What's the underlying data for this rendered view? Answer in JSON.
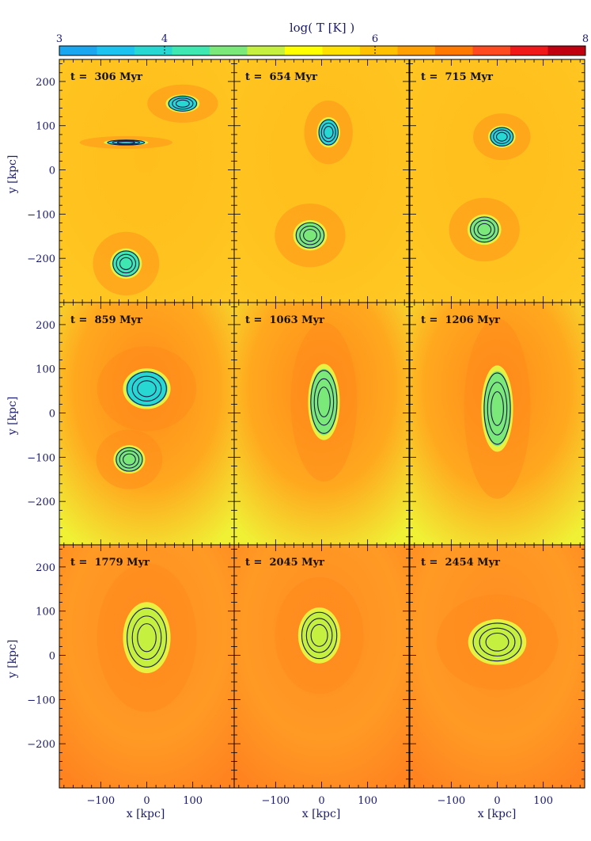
{
  "colorbar": {
    "title": "log( T [K] )",
    "ticks": [
      3,
      4,
      6,
      8
    ],
    "range": [
      3,
      8
    ],
    "colors": [
      "#1aa7f0",
      "#1cc2f0",
      "#27d8d2",
      "#3ee8b0",
      "#7be87a",
      "#c6f040",
      "#ffff00",
      "#ffe000",
      "#ffc000",
      "#ffa000",
      "#ff7800",
      "#ff4a20",
      "#f01818",
      "#c00010"
    ]
  },
  "chart_data": {
    "type": "heatmap",
    "title": "log( T [K] )",
    "xlabel": "x [kpc]",
    "ylabel": "y [kpc]",
    "xlim": [
      -190,
      190
    ],
    "ylim": [
      -300,
      250
    ],
    "xticks": [
      -100,
      0,
      100
    ],
    "yticks": [
      200,
      100,
      0,
      -100,
      -200
    ],
    "panels": [
      {
        "label": "t =  306 Myr",
        "time_myr": 306,
        "clouds": [
          {
            "x": 78,
            "y": 150,
            "rx": 32,
            "ry": 18,
            "t": 3.9
          },
          {
            "x": -45,
            "y": 62,
            "rx": 42,
            "ry": 6,
            "t": 4.0
          },
          {
            "x": -45,
            "y": -212,
            "rx": 30,
            "ry": 30,
            "t": 4.2
          }
        ]
      },
      {
        "label": "t =  654 Myr",
        "time_myr": 654,
        "clouds": [
          {
            "x": 15,
            "y": 85,
            "rx": 22,
            "ry": 30,
            "t": 4.0
          },
          {
            "x": -25,
            "y": -148,
            "rx": 32,
            "ry": 30,
            "t": 4.6
          }
        ]
      },
      {
        "label": "t =  715 Myr",
        "time_myr": 715,
        "clouds": [
          {
            "x": 10,
            "y": 75,
            "rx": 26,
            "ry": 22,
            "t": 4.0
          },
          {
            "x": -28,
            "y": -135,
            "rx": 32,
            "ry": 30,
            "t": 4.6
          }
        ]
      },
      {
        "label": "t =  859 Myr",
        "time_myr": 859,
        "clouds": [
          {
            "x": 0,
            "y": 55,
            "rx": 45,
            "ry": 40,
            "t": 4.0
          },
          {
            "x": -38,
            "y": -105,
            "rx": 30,
            "ry": 28,
            "t": 4.6
          }
        ]
      },
      {
        "label": "t =  1063 Myr",
        "time_myr": 1063,
        "clouds": [
          {
            "x": 5,
            "y": 25,
            "rx": 30,
            "ry": 75,
            "t": 4.5
          }
        ]
      },
      {
        "label": "t =  1206 Myr",
        "time_myr": 1206,
        "clouds": [
          {
            "x": 0,
            "y": 10,
            "rx": 30,
            "ry": 85,
            "t": 4.6
          }
        ]
      },
      {
        "label": "t =  1779 Myr",
        "time_myr": 1779,
        "clouds": [
          {
            "x": 0,
            "y": 40,
            "rx": 45,
            "ry": 70,
            "t": 4.8
          }
        ]
      },
      {
        "label": "t =  2045 Myr",
        "time_myr": 2045,
        "clouds": [
          {
            "x": -5,
            "y": 45,
            "rx": 40,
            "ry": 55,
            "t": 4.8
          }
        ]
      },
      {
        "label": "t =  2454 Myr",
        "time_myr": 2454,
        "clouds": [
          {
            "x": 0,
            "y": 30,
            "rx": 55,
            "ry": 45,
            "t": 4.8
          }
        ]
      }
    ]
  }
}
